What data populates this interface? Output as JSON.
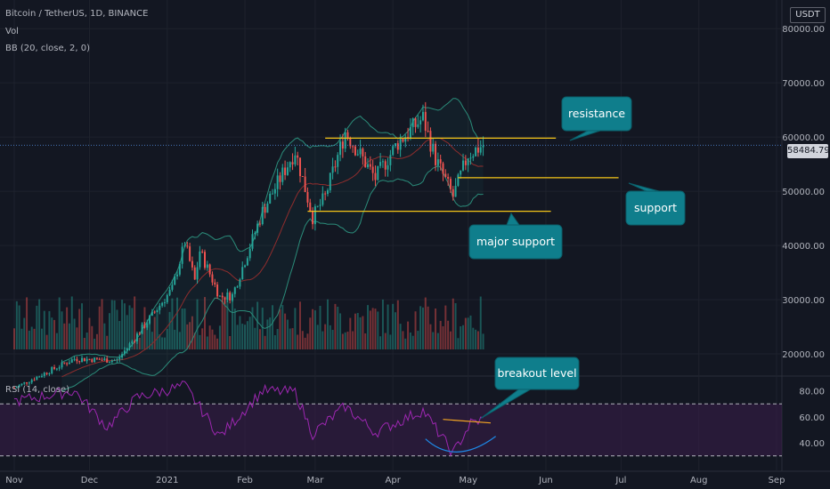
{
  "header": {
    "symbol_line": "Bitcoin / TetherUS, 1D, BINANCE",
    "volume_label": "Vol",
    "bb_label": "BB (20, close, 2, 0)",
    "rsi_label": "RSI (14, close)"
  },
  "currency_button": "USDT",
  "last_price_label": "58484.79",
  "colors": {
    "background": "#131722",
    "up": "#26a69a",
    "down": "#ef5350",
    "bollinger": "#2b8c7a",
    "bb_basis": "#8f2d2d",
    "level_line": "#f5c518",
    "callout": "#0f7e8c",
    "rsi_line": "#9c27b0",
    "rsi_band": "#3b1d4a"
  },
  "chart_data": [
    {
      "type": "candlestick",
      "title": "Bitcoin / TetherUS, 1D, BINANCE",
      "overlays": [
        "Vol",
        "BB (20, close, 2, 0)"
      ],
      "ylim": [
        20000,
        82000
      ],
      "y_ticks": [
        "80000.00",
        "70000.00",
        "60000.00",
        "50000.00",
        "40000.00",
        "30000.00",
        "20000.00"
      ],
      "y_tick_values": [
        80000,
        70000,
        60000,
        50000,
        40000,
        30000,
        20000
      ],
      "x_ticks": [
        "Nov",
        "Dec",
        "2021",
        "Feb",
        "Mar",
        "Apr",
        "May",
        "Jun",
        "Jul",
        "Aug",
        "Sep"
      ],
      "last_price": 58484.79,
      "price_path": [
        {
          "date": "2020-11-01",
          "price": 13700
        },
        {
          "date": "2020-11-25",
          "price": 19100
        },
        {
          "date": "2020-12-12",
          "price": 18800
        },
        {
          "date": "2020-12-20",
          "price": 23500
        },
        {
          "date": "2021-01-03",
          "price": 32000
        },
        {
          "date": "2021-01-08",
          "price": 40500
        },
        {
          "date": "2021-01-12",
          "price": 33500
        },
        {
          "date": "2021-01-14",
          "price": 39000
        },
        {
          "date": "2021-01-22",
          "price": 30500
        },
        {
          "date": "2021-01-27",
          "price": 30800
        },
        {
          "date": "2021-02-08",
          "price": 46300
        },
        {
          "date": "2021-02-21",
          "price": 57500
        },
        {
          "date": "2021-02-28",
          "price": 45200
        },
        {
          "date": "2021-03-05",
          "price": 49000
        },
        {
          "date": "2021-03-13",
          "price": 61000
        },
        {
          "date": "2021-03-25",
          "price": 52400
        },
        {
          "date": "2021-04-03",
          "price": 59000
        },
        {
          "date": "2021-04-13",
          "price": 63500
        },
        {
          "date": "2021-04-18",
          "price": 56000
        },
        {
          "date": "2021-04-25",
          "price": 49000
        },
        {
          "date": "2021-05-01",
          "price": 56800
        },
        {
          "date": "2021-05-07",
          "price": 58484.79
        }
      ],
      "annotations": [
        {
          "text": "resistance",
          "level": 59800,
          "from": "2021-03-05",
          "to": "2021-06-05"
        },
        {
          "text": "support",
          "level": 52500,
          "from": "2021-04-27",
          "to": "2021-06-30"
        },
        {
          "text": "major support",
          "level": 46300,
          "from": "2021-02-26",
          "to": "2021-06-03"
        }
      ]
    },
    {
      "type": "line",
      "title": "RSI (14, close)",
      "ylim": [
        25,
        90
      ],
      "y_ticks": [
        "80.00",
        "60.00",
        "40.00"
      ],
      "y_tick_values": [
        80,
        60,
        40
      ],
      "band": [
        30,
        70
      ],
      "rsi_path": [
        {
          "date": "2020-11-01",
          "value": 72
        },
        {
          "date": "2020-11-25",
          "value": 80
        },
        {
          "date": "2020-12-08",
          "value": 52
        },
        {
          "date": "2020-12-20",
          "value": 75
        },
        {
          "date": "2021-01-08",
          "value": 84
        },
        {
          "date": "2021-01-22",
          "value": 45
        },
        {
          "date": "2021-02-08",
          "value": 80
        },
        {
          "date": "2021-02-21",
          "value": 79
        },
        {
          "date": "2021-02-28",
          "value": 47
        },
        {
          "date": "2021-03-13",
          "value": 68
        },
        {
          "date": "2021-03-25",
          "value": 48
        },
        {
          "date": "2021-04-13",
          "value": 65
        },
        {
          "date": "2021-04-25",
          "value": 32
        },
        {
          "date": "2021-05-02",
          "value": 55
        },
        {
          "date": "2021-05-07",
          "value": 58
        }
      ],
      "annotations": [
        {
          "text": "breakout level",
          "level": 56
        }
      ]
    }
  ]
}
